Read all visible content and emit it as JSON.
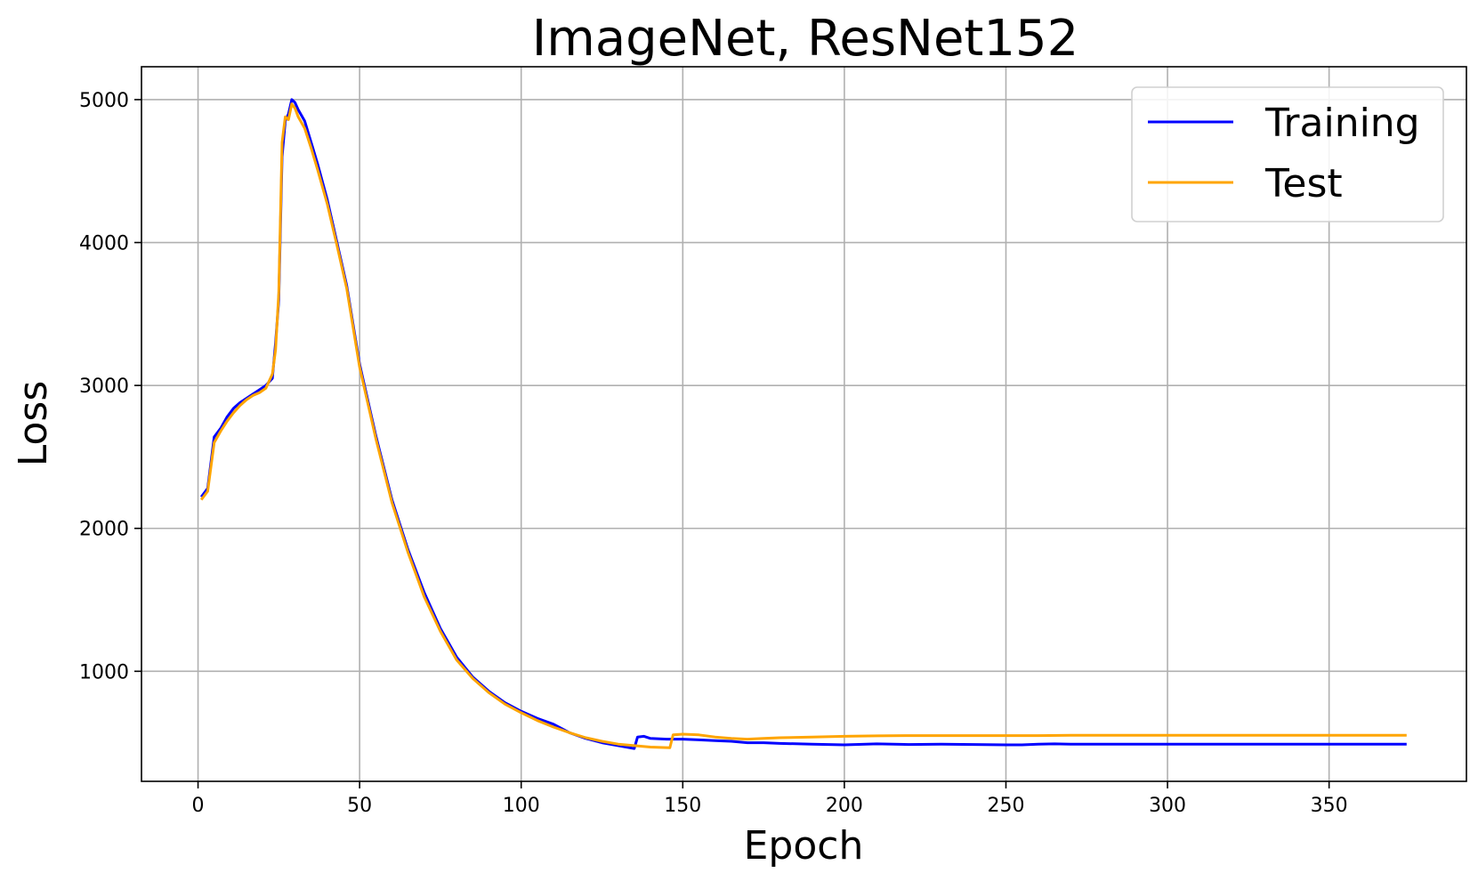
{
  "chart_data": {
    "type": "line",
    "title": "ImageNet, ResNet152",
    "xlabel": "Epoch",
    "ylabel": "Loss",
    "xlim": [
      -17.5,
      392.5
    ],
    "ylim": [
      230,
      5230
    ],
    "xticks": [
      0,
      50,
      100,
      150,
      200,
      250,
      300,
      350
    ],
    "yticks": [
      1000,
      2000,
      3000,
      4000,
      5000
    ],
    "grid": true,
    "legend_position": "upper right",
    "series": [
      {
        "name": "Training",
        "color": "#0000ff",
        "x": [
          1,
          3,
          5,
          7,
          9,
          11,
          13,
          15,
          17,
          19,
          21,
          23,
          24,
          25,
          26,
          27,
          28,
          29,
          30,
          31,
          33,
          35,
          37,
          40,
          43,
          46,
          50,
          55,
          60,
          65,
          70,
          75,
          80,
          85,
          90,
          95,
          100,
          105,
          110,
          115,
          120,
          125,
          130,
          135,
          136,
          138,
          140,
          145,
          150,
          155,
          160,
          165,
          170,
          175,
          180,
          190,
          200,
          210,
          220,
          230,
          240,
          250,
          255,
          260,
          265,
          270,
          280,
          300,
          320,
          340,
          360,
          374
        ],
        "y": [
          2220,
          2280,
          2640,
          2700,
          2780,
          2840,
          2880,
          2910,
          2940,
          2970,
          3000,
          3050,
          3300,
          3600,
          4600,
          4850,
          4900,
          5000,
          4980,
          4930,
          4850,
          4700,
          4550,
          4300,
          4000,
          3700,
          3150,
          2650,
          2200,
          1850,
          1550,
          1300,
          1100,
          960,
          860,
          780,
          720,
          670,
          630,
          570,
          530,
          500,
          480,
          460,
          540,
          545,
          530,
          525,
          525,
          520,
          515,
          510,
          500,
          500,
          495,
          490,
          485,
          492,
          488,
          490,
          488,
          485,
          485,
          490,
          492,
          490,
          490,
          490,
          490,
          490,
          490,
          490
        ]
      },
      {
        "name": "Test",
        "color": "#ffa500",
        "x": [
          1,
          3,
          5,
          7,
          9,
          11,
          13,
          15,
          17,
          19,
          21,
          23,
          24,
          25,
          26,
          27,
          28,
          29,
          30,
          31,
          33,
          35,
          37,
          40,
          43,
          46,
          50,
          55,
          60,
          65,
          70,
          75,
          80,
          85,
          90,
          95,
          100,
          105,
          110,
          115,
          120,
          125,
          130,
          135,
          140,
          146,
          147,
          150,
          155,
          160,
          165,
          170,
          175,
          180,
          190,
          200,
          210,
          220,
          230,
          240,
          250,
          260,
          270,
          280,
          300,
          320,
          340,
          360,
          374
        ],
        "y": [
          2200,
          2260,
          2600,
          2680,
          2750,
          2810,
          2860,
          2900,
          2930,
          2950,
          2980,
          3080,
          3250,
          3650,
          4700,
          4880,
          4860,
          4970,
          4940,
          4880,
          4800,
          4660,
          4510,
          4270,
          3980,
          3680,
          3130,
          2630,
          2180,
          1830,
          1520,
          1280,
          1080,
          950,
          850,
          770,
          710,
          655,
          610,
          570,
          535,
          510,
          490,
          480,
          470,
          465,
          555,
          560,
          555,
          540,
          530,
          525,
          530,
          535,
          540,
          545,
          548,
          550,
          550,
          550,
          550,
          550,
          552,
          552,
          552,
          552,
          552,
          552,
          552
        ]
      }
    ]
  }
}
